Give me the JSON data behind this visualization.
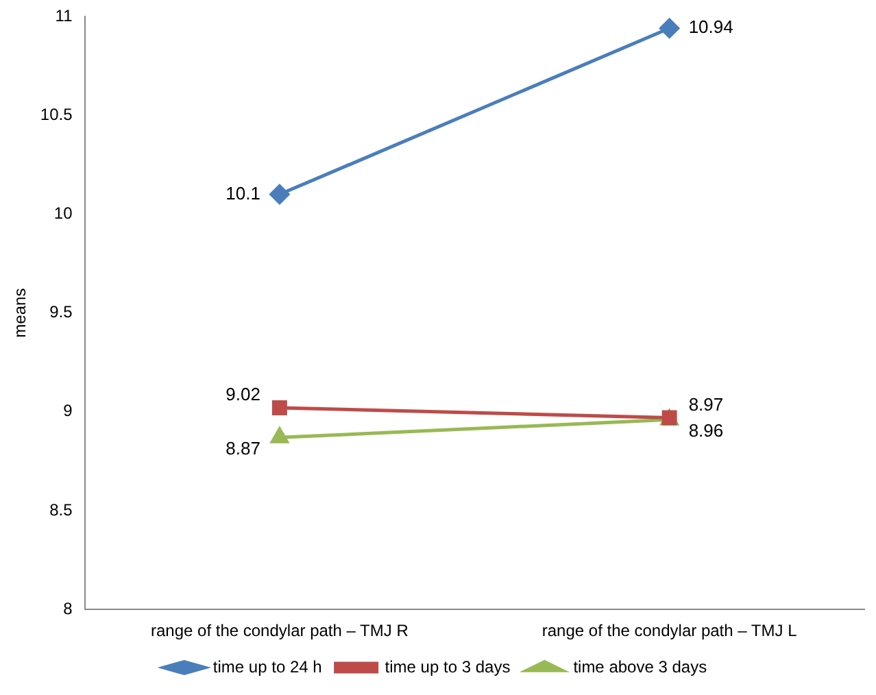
{
  "chart_data": {
    "type": "line",
    "ylabel": "means",
    "categories": [
      "range of the condylar path – TMJ R",
      "range of the condylar path – TMJ L"
    ],
    "series": [
      {
        "name": "time up to 24 h",
        "color": "#4a7ebb",
        "values": [
          10.1,
          10.94
        ],
        "marker": "diamond"
      },
      {
        "name": "time up to 3 days",
        "color": "#be4b48",
        "values": [
          9.02,
          8.97
        ],
        "marker": "square"
      },
      {
        "name": "time above 3 days",
        "color": "#98b954",
        "values": [
          8.87,
          8.96
        ],
        "marker": "triangle"
      }
    ],
    "ylim": [
      8,
      11
    ],
    "yticks": [
      8,
      8.5,
      9,
      9.5,
      10,
      10.5,
      11
    ],
    "grid": false,
    "legend": "bottom",
    "data_labels": true,
    "line_style": "solid"
  }
}
